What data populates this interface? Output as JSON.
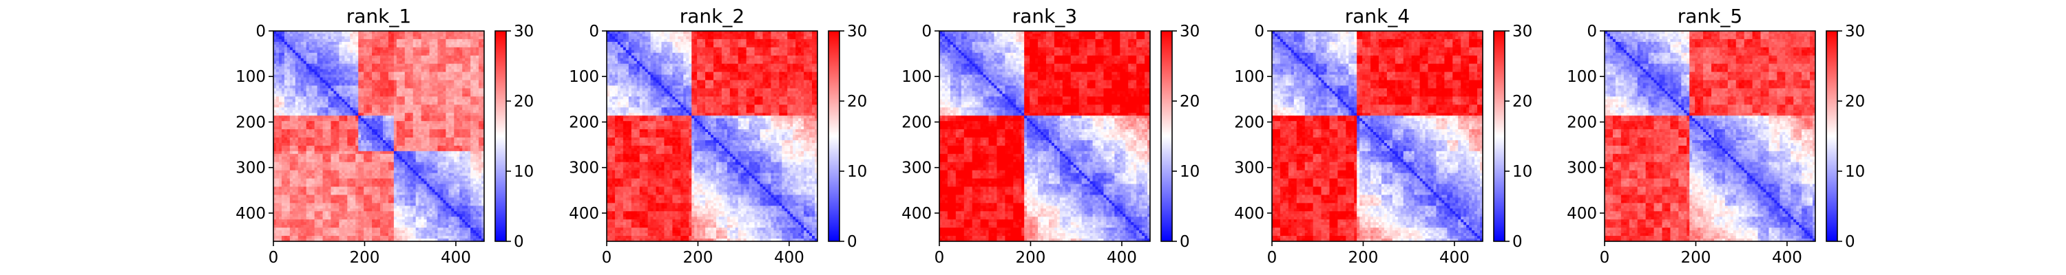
{
  "chart_data": [
    {
      "type": "heatmap",
      "title": "rank_1",
      "x_ticks": [
        0,
        200,
        400
      ],
      "y_ticks": [
        0,
        100,
        200,
        300,
        400
      ],
      "xlim": [
        0,
        462
      ],
      "ylim": [
        462,
        0
      ],
      "n": 462,
      "colormap": "bwr",
      "clim": [
        0,
        30
      ],
      "colorbar_ticks": [
        0,
        10,
        20,
        30
      ],
      "domains": [
        [
          0,
          185
        ],
        [
          185,
          262
        ],
        [
          262,
          462
        ]
      ],
      "inter_domain_distance": [
        [
          null,
          24,
          22
        ],
        [
          24,
          null,
          23
        ],
        [
          22,
          23,
          null
        ]
      ]
    },
    {
      "type": "heatmap",
      "title": "rank_2",
      "x_ticks": [
        0,
        200,
        400
      ],
      "y_ticks": [
        0,
        100,
        200,
        300,
        400
      ],
      "xlim": [
        0,
        462
      ],
      "ylim": [
        462,
        0
      ],
      "n": 462,
      "colormap": "bwr",
      "clim": [
        0,
        30
      ],
      "colorbar_ticks": [
        0,
        10,
        20,
        30
      ],
      "domains": [
        [
          0,
          185
        ],
        [
          185,
          462
        ]
      ],
      "inter_domain_distance": [
        [
          null,
          27
        ],
        [
          27,
          null
        ]
      ]
    },
    {
      "type": "heatmap",
      "title": "rank_3",
      "x_ticks": [
        0,
        200,
        400
      ],
      "y_ticks": [
        0,
        100,
        200,
        300,
        400
      ],
      "xlim": [
        0,
        462
      ],
      "ylim": [
        462,
        0
      ],
      "n": 462,
      "colormap": "bwr",
      "clim": [
        0,
        30
      ],
      "colorbar_ticks": [
        0,
        10,
        20,
        30
      ],
      "domains": [
        [
          0,
          185
        ],
        [
          185,
          462
        ]
      ],
      "inter_domain_distance": [
        [
          null,
          29
        ],
        [
          29,
          null
        ]
      ]
    },
    {
      "type": "heatmap",
      "title": "rank_4",
      "x_ticks": [
        0,
        200,
        400
      ],
      "y_ticks": [
        0,
        100,
        200,
        300,
        400
      ],
      "xlim": [
        0,
        462
      ],
      "ylim": [
        462,
        0
      ],
      "n": 462,
      "colormap": "bwr",
      "clim": [
        0,
        30
      ],
      "colorbar_ticks": [
        0,
        10,
        20,
        30
      ],
      "domains": [
        [
          0,
          185
        ],
        [
          185,
          462
        ]
      ],
      "inter_domain_distance": [
        [
          null,
          28
        ],
        [
          28,
          null
        ]
      ]
    },
    {
      "type": "heatmap",
      "title": "rank_5",
      "x_ticks": [
        0,
        200,
        400
      ],
      "y_ticks": [
        0,
        100,
        200,
        300,
        400
      ],
      "xlim": [
        0,
        462
      ],
      "ylim": [
        462,
        0
      ],
      "n": 462,
      "colormap": "bwr",
      "clim": [
        0,
        30
      ],
      "colorbar_ticks": [
        0,
        10,
        20,
        30
      ],
      "domains": [
        [
          0,
          185
        ],
        [
          185,
          462
        ]
      ],
      "inter_domain_distance": [
        [
          null,
          26
        ],
        [
          26,
          null
        ]
      ]
    }
  ]
}
